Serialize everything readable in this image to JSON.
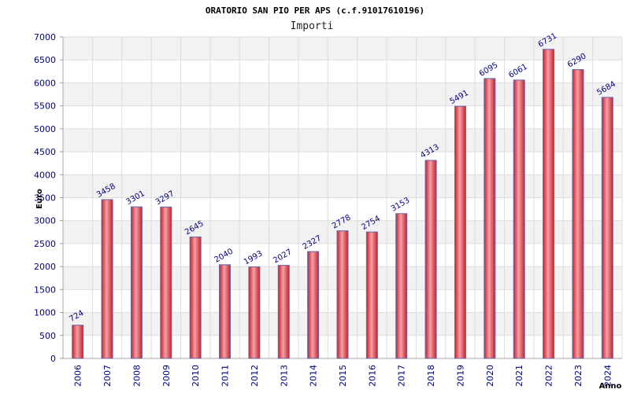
{
  "chart_data": {
    "type": "bar",
    "title": "ORATORIO SAN PIO PER APS (c.f.91017610196)",
    "subtitle": "Importi",
    "xlabel": "Anno",
    "ylabel": "Euro",
    "categories": [
      "2006",
      "2007",
      "2008",
      "2009",
      "2010",
      "2011",
      "2012",
      "2013",
      "2014",
      "2015",
      "2016",
      "2017",
      "2018",
      "2019",
      "2020",
      "2021",
      "2022",
      "2023",
      "2024"
    ],
    "values": [
      724,
      3458,
      3301,
      3297,
      2645,
      2040,
      1993,
      2027,
      2327,
      2778,
      2754,
      3153,
      4313,
      5491,
      6095,
      6061,
      6731,
      6290,
      5684
    ],
    "value_labels": [
      "724",
      "3458",
      "3301",
      "3297",
      "2645",
      "2040",
      "1993",
      "2027",
      "2327",
      "2778",
      "2754",
      "3153",
      "4313",
      "5491",
      "6095",
      "6061",
      "6731",
      "6290",
      "5684"
    ],
    "ylim": [
      0,
      7000
    ],
    "yticks": [
      "0",
      "500",
      "1000",
      "1500",
      "2000",
      "2500",
      "3000",
      "3500",
      "4000",
      "4500",
      "5000",
      "5500",
      "6000",
      "6500",
      "7000"
    ],
    "grid": true,
    "colors": {
      "bar_edge": "#6666aa",
      "bar_dark": "#c8202a",
      "bar_light": "#f6a0a6",
      "band_alt": "#f2f2f2",
      "grid": "#dddddd",
      "tick_text": "#000080"
    }
  }
}
